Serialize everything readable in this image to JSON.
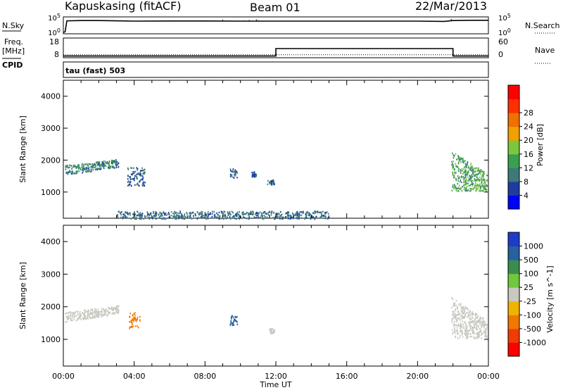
{
  "header": {
    "station": "Kapuskasing (fitACF)",
    "beam": "Beam 01",
    "date": "22/Mar/2013"
  },
  "side_labels": {
    "nsky": "N.Sky",
    "freq_line1": "Freq.",
    "freq_line2": "[MHz]",
    "cpid": "CPID",
    "nsearch": "N.Search",
    "nave": "Nave"
  },
  "cpid_text": "tau (fast) 503",
  "colors": {
    "trace": "#000000",
    "frame": "#000000"
  },
  "chart_data": [
    {
      "type": "line",
      "title": "",
      "panel": "noise",
      "ylabel_left": "N.Sky",
      "ylabel_right": "N.Search",
      "y_ticks_left": [
        "10^5",
        "10^0"
      ],
      "y_ticks_right": [
        "10^5",
        "10^0"
      ],
      "x_hours": [
        0,
        0.1,
        0.2,
        1,
        2,
        3,
        4,
        6,
        8,
        10,
        12,
        14,
        16,
        18,
        20,
        21.5,
        22,
        23,
        24
      ],
      "nsky_log10": [
        0,
        0.2,
        4.1,
        4.2,
        4.2,
        4.1,
        4.0,
        4.05,
        4.05,
        4.0,
        4.0,
        4.0,
        4.0,
        4.0,
        4.0,
        3.9,
        4.2,
        4.3,
        4.3
      ]
    },
    {
      "type": "line",
      "title": "",
      "panel": "frequency",
      "ylabel_left": "Freq. [MHz]",
      "ylabel_right": "Nave",
      "y_ticks_left": [
        "18",
        "8"
      ],
      "y_ticks_right": [
        "60",
        "0"
      ],
      "freq_segments_hours": [
        [
          0,
          12,
          8.2
        ],
        [
          12,
          22,
          13.0
        ],
        [
          22,
          24,
          8.2
        ]
      ],
      "nave_value": 6
    },
    {
      "type": "scatter",
      "panel": "power",
      "title": "",
      "xlabel": "",
      "ylabel": "Slant Range [km]",
      "xlim": [
        0,
        24
      ],
      "ylim": [
        180,
        4500
      ],
      "y_ticks": [
        1000,
        2000,
        3000,
        4000
      ],
      "colorbar_label": "Power [dB]",
      "colorbar_ticks": [
        "4",
        "8",
        "12",
        "16",
        "20",
        "24",
        "28"
      ],
      "colorbar_colors": [
        "#0000ff",
        "#1e3ca0",
        "#3c7a78",
        "#38a050",
        "#7cc83c",
        "#f0a000",
        "#f07000",
        "#ff3000",
        "#ff0000"
      ],
      "clusters": [
        {
          "hours": [
            0.1,
            3.1
          ],
          "range_km": [
            1550,
            2050
          ],
          "trend": "rising",
          "power_db": [
            6,
            16
          ]
        },
        {
          "hours": [
            3.6,
            4.6
          ],
          "range_km": [
            1200,
            1800
          ],
          "power_db": [
            6,
            10
          ]
        },
        {
          "hours": [
            9.4,
            9.8
          ],
          "range_km": [
            1450,
            1750
          ],
          "power_db": [
            6,
            10
          ]
        },
        {
          "hours": [
            10.6,
            10.9
          ],
          "range_km": [
            1500,
            1650
          ],
          "power_db": [
            6,
            10
          ]
        },
        {
          "hours": [
            11.5,
            11.9
          ],
          "range_km": [
            1250,
            1400
          ],
          "power_db": [
            6,
            10
          ]
        },
        {
          "hours": [
            3.0,
            15.0
          ],
          "range_km": [
            180,
            420
          ],
          "power_db": [
            6,
            12
          ]
        },
        {
          "hours": [
            21.9,
            23.9
          ],
          "range_km": [
            1050,
            2300
          ],
          "trend": "falling",
          "power_db": [
            8,
            20
          ]
        }
      ]
    },
    {
      "type": "scatter",
      "panel": "velocity",
      "title": "",
      "xlabel": "Time UT",
      "ylabel": "Slant Range [km]",
      "xlim": [
        0,
        24
      ],
      "ylim": [
        180,
        4500
      ],
      "x_ticks": [
        "00:00",
        "04:00",
        "08:00",
        "12:00",
        "16:00",
        "20:00",
        "00:00"
      ],
      "y_ticks": [
        1000,
        2000,
        3000,
        4000
      ],
      "colorbar_label": "Velocity [m s^-1]",
      "colorbar_ticks": [
        "1000",
        "500",
        "100",
        "25",
        "-25",
        "-100",
        "-500",
        "-1000"
      ],
      "colorbar_colors": [
        "#1e3cc8",
        "#2860a0",
        "#3c8c50",
        "#70c83c",
        "#c8c8c0",
        "#f0b400",
        "#f07800",
        "#f03c00",
        "#ff0000"
      ],
      "clusters": [
        {
          "hours": [
            0.1,
            3.1
          ],
          "range_km": [
            1550,
            2050
          ],
          "trend": "rising",
          "velocity_ms": [
            -20,
            20
          ]
        },
        {
          "hours": [
            3.7,
            4.3
          ],
          "range_km": [
            1350,
            1850
          ],
          "velocity_ms": [
            -500,
            -100
          ]
        },
        {
          "hours": [
            9.4,
            9.8
          ],
          "range_km": [
            1450,
            1750
          ],
          "velocity_ms": [
            200,
            500
          ]
        },
        {
          "hours": [
            11.6,
            11.9
          ],
          "range_km": [
            1200,
            1350
          ],
          "velocity_ms": [
            -20,
            20
          ]
        },
        {
          "hours": [
            21.9,
            23.9
          ],
          "range_km": [
            1050,
            2300
          ],
          "trend": "falling",
          "velocity_ms": [
            -20,
            20
          ]
        }
      ]
    }
  ]
}
